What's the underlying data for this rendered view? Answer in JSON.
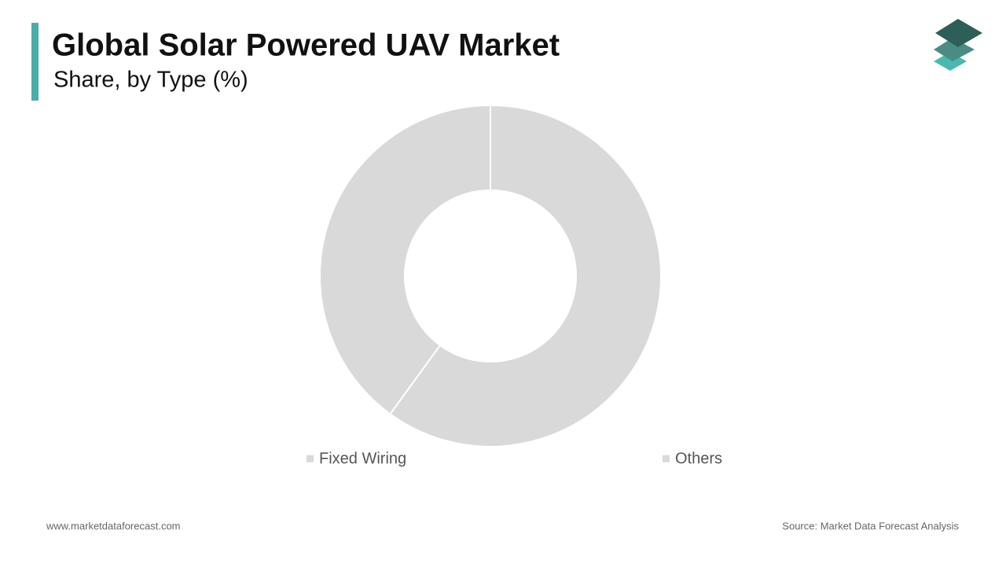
{
  "chart_data": {
    "type": "pie",
    "title": "Global Solar Powered UAV Market",
    "subtitle": "Share, by Type (%)",
    "categories": [
      "Fixed Wiring",
      "Others"
    ],
    "values": [
      60,
      40
    ],
    "colors": [
      "#d9d9d9",
      "#d9d9d9"
    ],
    "website": "www.marketdataforecast.com",
    "source": "Source: Market Data Forecast Analysis"
  }
}
